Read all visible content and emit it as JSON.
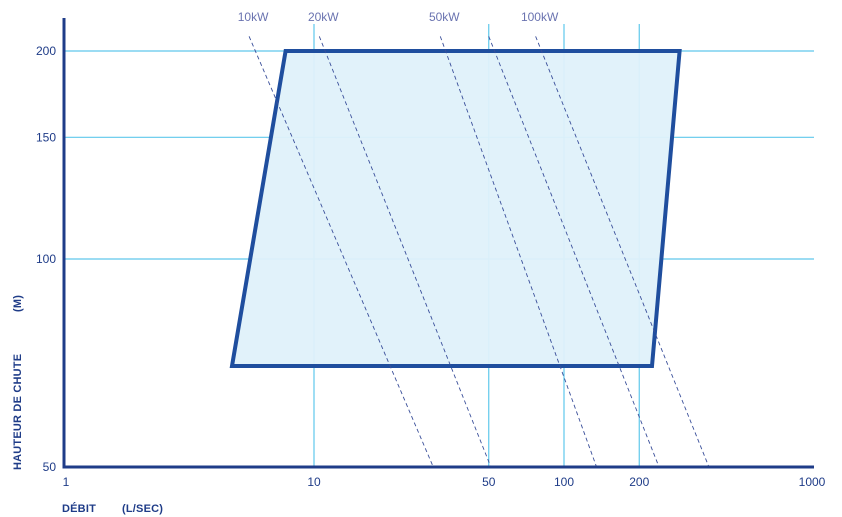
{
  "chart_data": {
    "type": "area",
    "title": "",
    "xlabel": "DÉBIT",
    "xunit": "(L/SEC)",
    "ylabel": "HAUTEUR DE CHUTE",
    "yunit": "(M)",
    "x_scale": "log",
    "y_scale": "log",
    "xlim": [
      1,
      1000
    ],
    "ylim": [
      50,
      210
    ],
    "x_ticks": [
      1,
      10,
      50,
      100,
      200,
      1000
    ],
    "x_tick_labels": [
      "1",
      "10",
      "50",
      "100",
      "200",
      "1000"
    ],
    "y_ticks": [
      50,
      100,
      150,
      200
    ],
    "y_tick_labels": [
      "50",
      "100",
      "150",
      "200"
    ],
    "grid": true,
    "operating_range": {
      "name": "",
      "points": [
        {
          "x": 4.7,
          "y": 70
        },
        {
          "x": 7.7,
          "y": 200
        },
        {
          "x": 290,
          "y": 200
        },
        {
          "x": 225,
          "y": 70
        }
      ]
    },
    "power_lines": [
      {
        "label": "10kW",
        "points": [
          {
            "x": 5.5,
            "y": 210
          },
          {
            "x": 30,
            "y": 50
          }
        ]
      },
      {
        "label": "20kW",
        "points": [
          {
            "x": 10.5,
            "y": 210
          },
          {
            "x": 51,
            "y": 50
          }
        ]
      },
      {
        "label": "50kW",
        "points": [
          {
            "x": 32,
            "y": 210
          },
          {
            "x": 135,
            "y": 50
          }
        ]
      },
      {
        "label": "100kW",
        "points": [
          {
            "x": 77,
            "y": 210
          },
          {
            "x": 380,
            "y": 50
          }
        ]
      }
    ],
    "extra_dashed_lines": [
      {
        "points": [
          {
            "x": 50,
            "y": 210
          },
          {
            "x": 240,
            "y": 50
          }
        ]
      }
    ],
    "colors": {
      "axis": "#1f3c88",
      "grid": "#5fc8ec",
      "fill": "#dff1fa",
      "outline": "#1f4e9e",
      "dashed": "#3a4f9a",
      "tick_text": "#1f3c88",
      "power_label_text": "#6a73b0"
    }
  }
}
